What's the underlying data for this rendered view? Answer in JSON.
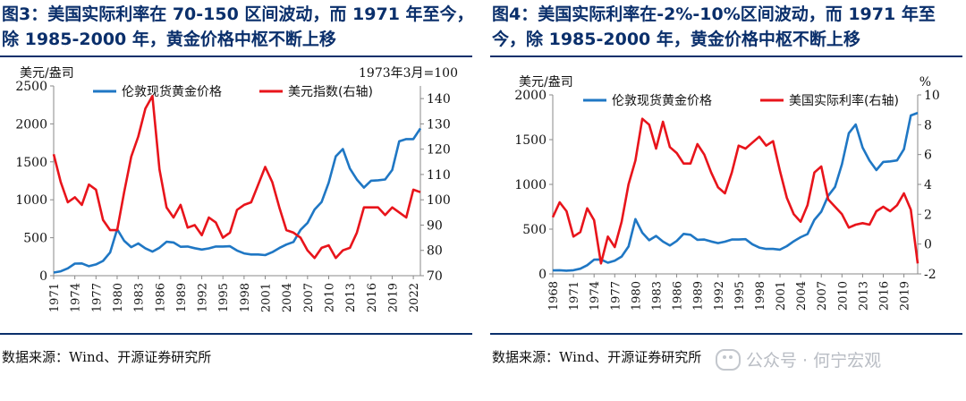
{
  "charts": [
    {
      "title": "图3：美国实际利率在 70-150 区间波动，而 1971 年至今，除 1985-2000 年，黄金价格中枢不断上移",
      "source": "数据来源：Wind、开源证券研究所",
      "unit_left": "美元/盎司",
      "unit_right": "1973年3月=100",
      "legend": [
        "伦敦现货黄金价格",
        "美元指数(右轴)"
      ],
      "colors": {
        "gold": "#1f77c4",
        "usd": "#e8141b"
      },
      "x_ticks": [
        "1971",
        "1974",
        "1977",
        "1980",
        "1983",
        "1986",
        "1989",
        "1992",
        "1995",
        "1998",
        "2001",
        "2004",
        "2007",
        "2010",
        "2013",
        "2016",
        "2019",
        "2022"
      ],
      "y_left_ticks": [
        "0",
        "500",
        "1000",
        "1500",
        "2000",
        "2500"
      ],
      "y_right_ticks": [
        "70",
        "80",
        "90",
        "100",
        "110",
        "120",
        "130",
        "140"
      ]
    },
    {
      "title": "图4：美国实际利率在-2%-10%区间波动，而 1971 年至今，除 1985-2000 年，黄金价格中枢不断上移",
      "source": "数据来源：Wind、开源证券研究所",
      "unit_left": "美元/盎司",
      "unit_right": "%",
      "legend": [
        "伦敦现货黄金价格",
        "美国实际利率(右轴)"
      ],
      "colors": {
        "gold": "#1f77c4",
        "rate": "#e8141b"
      },
      "x_ticks": [
        "1968",
        "1971",
        "1974",
        "1977",
        "1980",
        "1983",
        "1986",
        "1989",
        "1992",
        "1995",
        "1998",
        "2001",
        "2004",
        "2007",
        "2010",
        "2013",
        "2016",
        "2019"
      ],
      "y_left_ticks": [
        "0",
        "500",
        "1000",
        "1500",
        "2000"
      ],
      "y_right_ticks": [
        "-2",
        "0",
        "2",
        "4",
        "6",
        "8",
        "10"
      ]
    }
  ],
  "watermark": "公众号 · 何宁宏观",
  "chart_data": [
    {
      "type": "line",
      "x": [
        1971,
        1972,
        1973,
        1974,
        1975,
        1976,
        1977,
        1978,
        1979,
        1980,
        1981,
        1982,
        1983,
        1984,
        1985,
        1986,
        1987,
        1988,
        1989,
        1990,
        1991,
        1992,
        1993,
        1994,
        1995,
        1996,
        1997,
        1998,
        1999,
        2000,
        2001,
        2002,
        2003,
        2004,
        2005,
        2006,
        2007,
        2008,
        2009,
        2010,
        2011,
        2012,
        2013,
        2014,
        2015,
        2016,
        2017,
        2018,
        2019,
        2020,
        2021,
        2022,
        2023
      ],
      "series": [
        {
          "name": "伦敦现货黄金价格",
          "axis": "left",
          "values": [
            41,
            58,
            97,
            159,
            161,
            125,
            148,
            194,
            306,
            612,
            460,
            376,
            424,
            361,
            317,
            368,
            447,
            437,
            381,
            384,
            362,
            344,
            360,
            384,
            384,
            388,
            331,
            294,
            279,
            279,
            271,
            310,
            364,
            410,
            445,
            604,
            695,
            872,
            972,
            1225,
            1572,
            1669,
            1411,
            1266,
            1160,
            1251,
            1257,
            1268,
            1393,
            1770,
            1799,
            1800,
            1940
          ]
        },
        {
          "name": "美元指数(右轴)",
          "axis": "right",
          "values": [
            118,
            107,
            99,
            101,
            98,
            106,
            104,
            92,
            88,
            88,
            103,
            117,
            125,
            136,
            141,
            112,
            97,
            93,
            98,
            89,
            90,
            86,
            93,
            91,
            85,
            87,
            96,
            98,
            99,
            106,
            113,
            107,
            97,
            88,
            87,
            85,
            80,
            77,
            81,
            82,
            77,
            80,
            81,
            87,
            97,
            97,
            97,
            94,
            97,
            95,
            93,
            104,
            103
          ]
        }
      ],
      "xlim": [
        1971,
        2023
      ],
      "ylim_left": [
        0,
        2500
      ],
      "ylim_right": [
        70,
        145
      ],
      "legend_position": "top"
    },
    {
      "type": "line",
      "x": [
        1968,
        1969,
        1970,
        1971,
        1972,
        1973,
        1974,
        1975,
        1976,
        1977,
        1978,
        1979,
        1980,
        1981,
        1982,
        1983,
        1984,
        1985,
        1986,
        1987,
        1988,
        1989,
        1990,
        1991,
        1992,
        1993,
        1994,
        1995,
        1996,
        1997,
        1998,
        1999,
        2000,
        2001,
        2002,
        2003,
        2004,
        2005,
        2006,
        2007,
        2008,
        2009,
        2010,
        2011,
        2012,
        2013,
        2014,
        2015,
        2016,
        2017,
        2018,
        2019,
        2020,
        2021
      ],
      "series": [
        {
          "name": "伦敦现货黄金价格",
          "axis": "left",
          "values": [
            39,
            41,
            36,
            41,
            58,
            97,
            159,
            161,
            125,
            148,
            194,
            306,
            612,
            460,
            376,
            424,
            361,
            317,
            368,
            447,
            437,
            381,
            384,
            362,
            344,
            360,
            384,
            384,
            388,
            331,
            294,
            279,
            279,
            271,
            310,
            364,
            410,
            445,
            604,
            695,
            872,
            972,
            1225,
            1572,
            1669,
            1411,
            1266,
            1160,
            1251,
            1257,
            1268,
            1393,
            1770,
            1799
          ]
        },
        {
          "name": "美国实际利率(右轴)",
          "axis": "right",
          "values": [
            1.8,
            2.8,
            2.2,
            0.5,
            0.8,
            2.4,
            1.6,
            -1.3,
            0.5,
            -0.2,
            1.5,
            4.0,
            5.6,
            8.4,
            8.0,
            6.4,
            8.2,
            6.5,
            6.1,
            5.4,
            5.4,
            6.7,
            6.0,
            4.8,
            3.8,
            3.4,
            4.8,
            6.6,
            6.4,
            6.8,
            7.2,
            6.6,
            6.9,
            4.9,
            3.1,
            2.0,
            1.5,
            2.6,
            4.8,
            5.2,
            3.0,
            2.5,
            2.0,
            1.1,
            1.3,
            1.4,
            1.3,
            2.2,
            2.5,
            2.2,
            2.6,
            3.4,
            2.3,
            -1.3
          ]
        }
      ],
      "xlim": [
        1968,
        2021
      ],
      "ylim_left": [
        0,
        2000
      ],
      "ylim_right": [
        -2,
        10
      ],
      "legend_position": "top"
    }
  ]
}
